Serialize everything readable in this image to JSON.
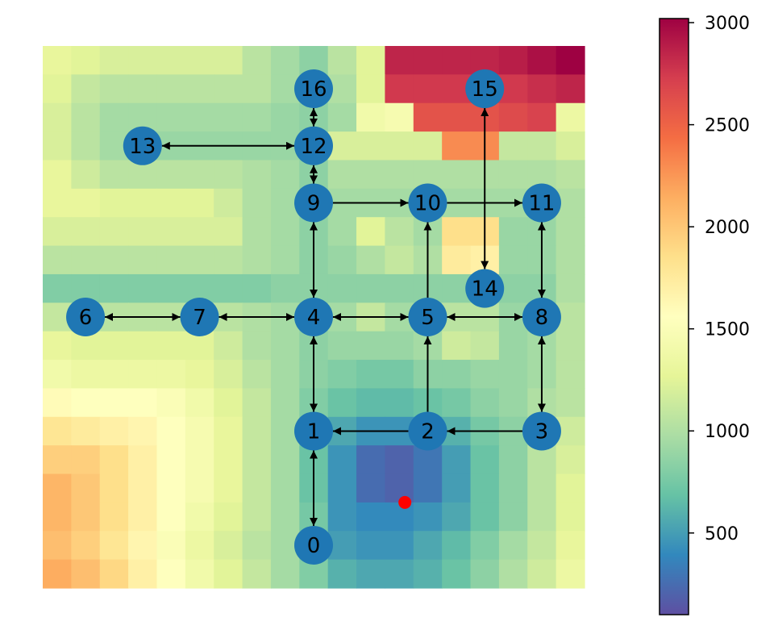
{
  "chart_data": {
    "type": "heatmap",
    "title": "",
    "xlabel": "",
    "ylabel": "",
    "colormap": "Spectral_r",
    "color_range": [
      100,
      3020
    ],
    "colorbar": {
      "ticks": [
        500,
        1000,
        1500,
        2000,
        2500,
        3000
      ],
      "tick_labels": [
        "500",
        "1000",
        "1500",
        "2000",
        "2500",
        "3000"
      ],
      "placement": "right"
    },
    "grid_size": [
      19,
      19
    ],
    "grid_values": [
      [
        1300,
        1250,
        1200,
        1200,
        1200,
        1200,
        1200,
        1050,
        950,
        850,
        1050,
        1250,
        2850,
        2850,
        2850,
        2850,
        2880,
        2950,
        3020
      ],
      [
        1250,
        1100,
        1050,
        1050,
        1050,
        1050,
        1050,
        1050,
        950,
        850,
        1000,
        1250,
        2750,
        2750,
        2750,
        2750,
        2750,
        2800,
        2850
      ],
      [
        1200,
        1050,
        950,
        950,
        950,
        950,
        950,
        950,
        900,
        850,
        950,
        1400,
        1450,
        2600,
        2600,
        2600,
        2650,
        2700,
        1350
      ],
      [
        1200,
        1050,
        950,
        900,
        900,
        900,
        900,
        900,
        900,
        850,
        1200,
        1200,
        1200,
        1200,
        2300,
        2300,
        1100,
        1100,
        1200
      ],
      [
        1300,
        1150,
        1050,
        1050,
        1050,
        1050,
        1050,
        1000,
        950,
        850,
        1000,
        1000,
        1000,
        1000,
        1000,
        1000,
        1000,
        1000,
        1050
      ],
      [
        1300,
        1300,
        1250,
        1250,
        1250,
        1250,
        1150,
        1000,
        950,
        850,
        950,
        950,
        950,
        950,
        950,
        950,
        950,
        950,
        1000
      ],
      [
        1200,
        1200,
        1200,
        1200,
        1200,
        1200,
        1200,
        1000,
        950,
        850,
        950,
        1250,
        1050,
        950,
        1850,
        1850,
        900,
        900,
        1000
      ],
      [
        1050,
        1050,
        1050,
        1050,
        1050,
        1050,
        1050,
        1000,
        950,
        850,
        900,
        1000,
        1100,
        1000,
        1750,
        1700,
        900,
        900,
        1000
      ],
      [
        800,
        800,
        800,
        800,
        800,
        800,
        800,
        800,
        850,
        850,
        850,
        850,
        850,
        850,
        850,
        850,
        850,
        850,
        1000
      ],
      [
        1100,
        1050,
        1050,
        1050,
        1050,
        1050,
        1050,
        1000,
        950,
        850,
        950,
        1100,
        950,
        950,
        1050,
        1050,
        900,
        900,
        1050
      ],
      [
        1300,
        1250,
        1250,
        1250,
        1250,
        1250,
        1150,
        1000,
        950,
        850,
        900,
        900,
        900,
        950,
        1150,
        1100,
        900,
        950,
        1050
      ],
      [
        1400,
        1350,
        1350,
        1350,
        1350,
        1300,
        1200,
        1050,
        950,
        850,
        800,
        750,
        750,
        850,
        850,
        900,
        900,
        950,
        1050
      ],
      [
        1600,
        1550,
        1550,
        1550,
        1500,
        1400,
        1250,
        1100,
        950,
        800,
        700,
        650,
        650,
        700,
        750,
        850,
        900,
        1000,
        1050
      ],
      [
        1800,
        1750,
        1700,
        1650,
        1550,
        1450,
        1300,
        1100,
        950,
        750,
        550,
        450,
        450,
        500,
        600,
        750,
        850,
        1000,
        1150
      ],
      [
        1950,
        1950,
        1850,
        1700,
        1550,
        1450,
        1300,
        1100,
        950,
        700,
        450,
        250,
        200,
        300,
        500,
        700,
        850,
        1050,
        1200
      ],
      [
        2100,
        2000,
        1850,
        1700,
        1550,
        1450,
        1300,
        1100,
        950,
        700,
        450,
        250,
        200,
        300,
        500,
        700,
        850,
        1050,
        1250
      ],
      [
        2100,
        2000,
        1850,
        1700,
        1550,
        1400,
        1250,
        1100,
        950,
        750,
        450,
        400,
        400,
        450,
        550,
        700,
        850,
        1050,
        1250
      ],
      [
        2050,
        1950,
        1800,
        1650,
        1500,
        1350,
        1200,
        1050,
        950,
        750,
        500,
        450,
        450,
        550,
        650,
        800,
        950,
        1100,
        1300
      ],
      [
        2150,
        2050,
        1900,
        1700,
        1550,
        1400,
        1250,
        1100,
        950,
        800,
        600,
        550,
        550,
        600,
        700,
        850,
        1000,
        1150,
        1350
      ]
    ],
    "nodes": [
      {
        "id": "0",
        "x": 9,
        "y": 1
      },
      {
        "id": "1",
        "x": 9,
        "y": 5
      },
      {
        "id": "2",
        "x": 13,
        "y": 5
      },
      {
        "id": "3",
        "x": 17,
        "y": 5
      },
      {
        "id": "4",
        "x": 9,
        "y": 9
      },
      {
        "id": "5",
        "x": 13,
        "y": 9
      },
      {
        "id": "6",
        "x": 1,
        "y": 9
      },
      {
        "id": "7",
        "x": 5,
        "y": 9
      },
      {
        "id": "8",
        "x": 17,
        "y": 9
      },
      {
        "id": "9",
        "x": 9,
        "y": 13
      },
      {
        "id": "10",
        "x": 13,
        "y": 13
      },
      {
        "id": "11",
        "x": 17,
        "y": 13
      },
      {
        "id": "12",
        "x": 9,
        "y": 15
      },
      {
        "id": "13",
        "x": 3,
        "y": 15
      },
      {
        "id": "14",
        "x": 15,
        "y": 10
      },
      {
        "id": "15",
        "x": 15,
        "y": 17
      },
      {
        "id": "16",
        "x": 9,
        "y": 17
      }
    ],
    "edges": [
      {
        "from": "0",
        "to": "1",
        "direction": "both"
      },
      {
        "from": "1",
        "to": "4",
        "direction": "both"
      },
      {
        "from": "2",
        "to": "1",
        "direction": "forward"
      },
      {
        "from": "3",
        "to": "2",
        "direction": "forward"
      },
      {
        "from": "2",
        "to": "5",
        "direction": "forward"
      },
      {
        "from": "3",
        "to": "8",
        "direction": "both"
      },
      {
        "from": "6",
        "to": "7",
        "direction": "both"
      },
      {
        "from": "7",
        "to": "4",
        "direction": "both"
      },
      {
        "from": "4",
        "to": "5",
        "direction": "both"
      },
      {
        "from": "5",
        "to": "8",
        "direction": "both"
      },
      {
        "from": "4",
        "to": "9",
        "direction": "both"
      },
      {
        "from": "5",
        "to": "10",
        "direction": "forward"
      },
      {
        "from": "8",
        "to": "11",
        "direction": "both"
      },
      {
        "from": "9",
        "to": "10",
        "direction": "forward"
      },
      {
        "from": "10",
        "to": "11",
        "direction": "forward"
      },
      {
        "from": "9",
        "to": "12",
        "direction": "both"
      },
      {
        "from": "12",
        "to": "16",
        "direction": "both"
      },
      {
        "from": "13",
        "to": "12",
        "direction": "both"
      },
      {
        "from": "14",
        "to": "15",
        "direction": "both"
      }
    ],
    "marker": {
      "x": 12.2,
      "y": 2.5,
      "color": "#ff0000"
    },
    "node_color": "#1f77b4",
    "edge_color": "#000000"
  }
}
